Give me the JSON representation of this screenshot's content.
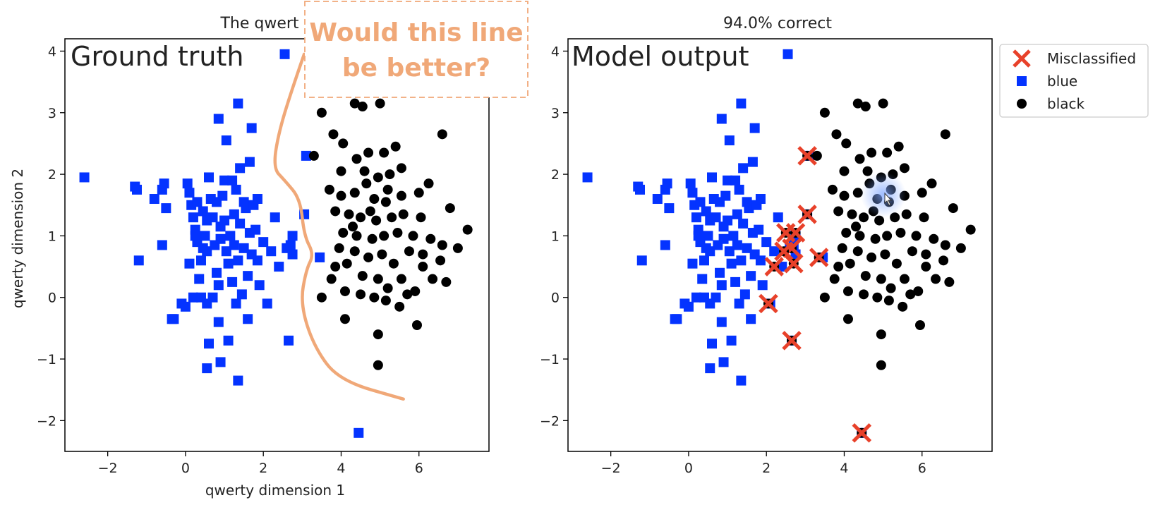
{
  "colors": {
    "blue": "#0433ff",
    "black": "#000000",
    "misclassified": "#e8412a",
    "annotation": "#f0a878",
    "axis": "#000000"
  },
  "chart_data": [
    {
      "type": "scatter",
      "title": "The qwert",
      "panel_label": "Ground truth",
      "xlabel": "qwerty dimension 1",
      "ylabel": "qwerty dimension 2",
      "xlim": [
        -3.1,
        7.8
      ],
      "ylim": [
        -2.5,
        4.2
      ],
      "xticks": [
        -2,
        0,
        2,
        4,
        6
      ],
      "yticks": [
        -2,
        -1,
        0,
        1,
        2,
        3,
        4
      ],
      "series": [
        {
          "name": "blue",
          "marker": "square",
          "points": [
            [
              -2.6,
              1.95
            ],
            [
              -1.3,
              1.8
            ],
            [
              -1.25,
              1.75
            ],
            [
              -1.2,
              0.6
            ],
            [
              -0.8,
              1.6
            ],
            [
              -0.6,
              1.75
            ],
            [
              -0.55,
              1.85
            ],
            [
              -0.5,
              1.45
            ],
            [
              -0.6,
              0.85
            ],
            [
              -0.35,
              -0.35
            ],
            [
              -0.3,
              -0.35
            ],
            [
              -0.1,
              -0.1
            ],
            [
              0.0,
              -0.15
            ],
            [
              0.05,
              1.85
            ],
            [
              0.1,
              1.7
            ],
            [
              0.15,
              1.5
            ],
            [
              0.2,
              1.3
            ],
            [
              0.25,
              1.1
            ],
            [
              0.3,
              1.55
            ],
            [
              0.35,
              0.3
            ],
            [
              0.4,
              0.0
            ],
            [
              0.45,
              1.4
            ],
            [
              0.5,
              1.0
            ],
            [
              0.55,
              0.75
            ],
            [
              0.6,
              1.95
            ],
            [
              0.65,
              1.6
            ],
            [
              0.7,
              1.3
            ],
            [
              0.75,
              0.85
            ],
            [
              0.8,
              0.4
            ],
            [
              0.85,
              0.2
            ],
            [
              0.9,
              1.15
            ],
            [
              0.95,
              1.65
            ],
            [
              1.0,
              1.9
            ],
            [
              1.05,
              0.75
            ],
            [
              1.1,
              0.55
            ],
            [
              1.15,
              1.0
            ],
            [
              1.2,
              0.25
            ],
            [
              1.25,
              1.35
            ],
            [
              1.3,
              1.75
            ],
            [
              1.35,
              0.6
            ],
            [
              1.4,
              1.2
            ],
            [
              1.45,
              0.05
            ],
            [
              1.5,
              0.8
            ],
            [
              1.55,
              1.45
            ],
            [
              1.6,
              0.35
            ],
            [
              1.65,
              1.05
            ],
            [
              1.7,
              0.7
            ],
            [
              1.75,
              1.5
            ],
            [
              1.8,
              1.1
            ],
            [
              1.85,
              0.6
            ],
            [
              1.9,
              0.2
            ],
            [
              2.0,
              0.9
            ],
            [
              2.1,
              -0.1
            ],
            [
              2.2,
              0.75
            ],
            [
              2.3,
              1.3
            ],
            [
              2.4,
              0.5
            ],
            [
              2.6,
              0.8
            ],
            [
              2.7,
              0.85
            ],
            [
              2.75,
              1.0
            ],
            [
              2.75,
              0.7
            ],
            [
              0.85,
              2.9
            ],
            [
              1.05,
              2.55
            ],
            [
              1.35,
              3.15
            ],
            [
              1.7,
              2.75
            ],
            [
              1.65,
              2.2
            ],
            [
              1.4,
              2.1
            ],
            [
              1.2,
              1.9
            ],
            [
              0.8,
              1.55
            ],
            [
              0.55,
              1.25
            ],
            [
              0.3,
              0.9
            ],
            [
              0.1,
              0.55
            ],
            [
              0.2,
              0.0
            ],
            [
              0.55,
              -0.1
            ],
            [
              0.6,
              -0.75
            ],
            [
              0.55,
              -1.15
            ],
            [
              0.9,
              -1.05
            ],
            [
              1.1,
              -0.7
            ],
            [
              1.35,
              -1.35
            ],
            [
              0.85,
              -0.4
            ],
            [
              1.3,
              -0.1
            ],
            [
              2.65,
              -0.7
            ],
            [
              3.1,
              2.3
            ],
            [
              3.05,
              1.35
            ],
            [
              3.45,
              0.65
            ],
            [
              2.55,
              3.95
            ],
            [
              4.45,
              -2.2
            ],
            [
              0.25,
              1.0
            ],
            [
              1.0,
              1.25
            ],
            [
              1.5,
              1.55
            ],
            [
              0.4,
              0.6
            ],
            [
              1.85,
              1.6
            ],
            [
              1.25,
              0.85
            ],
            [
              0.7,
              0.0
            ],
            [
              1.6,
              -0.35
            ],
            [
              0.45,
              0.8
            ],
            [
              0.9,
              0.95
            ]
          ]
        },
        {
          "name": "black",
          "marker": "circle",
          "points": [
            [
              3.5,
              3.0
            ],
            [
              3.8,
              2.65
            ],
            [
              4.05,
              2.5
            ],
            [
              4.35,
              3.15
            ],
            [
              4.55,
              3.1
            ],
            [
              5.0,
              3.15
            ],
            [
              6.6,
              2.65
            ],
            [
              5.4,
              2.45
            ],
            [
              5.1,
              2.35
            ],
            [
              4.7,
              2.35
            ],
            [
              4.4,
              2.25
            ],
            [
              3.3,
              2.3
            ],
            [
              4.0,
              2.05
            ],
            [
              4.6,
              2.05
            ],
            [
              5.25,
              2.0
            ],
            [
              5.55,
              2.1
            ],
            [
              4.95,
              1.95
            ],
            [
              4.65,
              1.85
            ],
            [
              4.35,
              1.7
            ],
            [
              4.0,
              1.65
            ],
            [
              3.7,
              1.75
            ],
            [
              4.85,
              1.6
            ],
            [
              5.2,
              1.75
            ],
            [
              5.55,
              1.65
            ],
            [
              6.0,
              1.7
            ],
            [
              6.25,
              1.85
            ],
            [
              3.85,
              1.4
            ],
            [
              4.2,
              1.35
            ],
            [
              4.5,
              1.3
            ],
            [
              4.9,
              1.25
            ],
            [
              5.3,
              1.3
            ],
            [
              5.6,
              1.35
            ],
            [
              6.05,
              1.3
            ],
            [
              6.8,
              1.45
            ],
            [
              7.25,
              1.1
            ],
            [
              4.05,
              1.05
            ],
            [
              4.4,
              1.0
            ],
            [
              4.8,
              0.95
            ],
            [
              5.1,
              1.0
            ],
            [
              5.45,
              1.05
            ],
            [
              5.85,
              1.0
            ],
            [
              6.3,
              0.95
            ],
            [
              6.6,
              0.85
            ],
            [
              7.0,
              0.8
            ],
            [
              3.95,
              0.8
            ],
            [
              4.35,
              0.75
            ],
            [
              4.7,
              0.65
            ],
            [
              5.05,
              0.7
            ],
            [
              5.35,
              0.55
            ],
            [
              5.75,
              0.75
            ],
            [
              6.1,
              0.7
            ],
            [
              6.55,
              0.6
            ],
            [
              3.85,
              0.5
            ],
            [
              4.15,
              0.55
            ],
            [
              4.55,
              0.35
            ],
            [
              4.95,
              0.3
            ],
            [
              5.2,
              0.15
            ],
            [
              5.55,
              0.3
            ],
            [
              5.9,
              0.1
            ],
            [
              6.35,
              0.3
            ],
            [
              3.75,
              0.3
            ],
            [
              4.1,
              0.1
            ],
            [
              4.5,
              0.05
            ],
            [
              4.85,
              0.0
            ],
            [
              5.15,
              -0.05
            ],
            [
              5.5,
              -0.15
            ],
            [
              5.7,
              0.05
            ],
            [
              3.5,
              0.0
            ],
            [
              4.1,
              -0.35
            ],
            [
              4.95,
              -0.6
            ],
            [
              5.95,
              -0.45
            ],
            [
              4.95,
              -1.1
            ],
            [
              6.1,
              0.5
            ],
            [
              6.7,
              0.25
            ],
            [
              4.3,
              1.15
            ],
            [
              4.75,
              1.4
            ],
            [
              5.15,
              1.55
            ]
          ]
        }
      ],
      "annotation": {
        "text_line1": "Would this line",
        "text_line2": "be better?",
        "curve": [
          [
            3.05,
            3.95
          ],
          [
            2.8,
            3.5
          ],
          [
            2.4,
            2.7
          ],
          [
            2.25,
            2.1
          ],
          [
            2.55,
            1.9
          ],
          [
            2.95,
            1.6
          ],
          [
            3.05,
            1.0
          ],
          [
            3.3,
            0.7
          ],
          [
            3.1,
            0.45
          ],
          [
            2.95,
            -0.1
          ],
          [
            3.3,
            -0.8
          ],
          [
            3.95,
            -1.35
          ],
          [
            5.6,
            -1.65
          ]
        ]
      }
    },
    {
      "type": "scatter",
      "title": "94.0% correct",
      "panel_label": "Model output",
      "xlabel": "",
      "ylabel": "",
      "xlim": [
        -3.1,
        7.8
      ],
      "ylim": [
        -2.5,
        4.2
      ],
      "xticks": [
        -2,
        0,
        2,
        4,
        6
      ],
      "yticks": [
        -2,
        -1,
        0,
        1,
        2,
        3,
        4
      ],
      "misclassified": [
        [
          3.05,
          2.3
        ],
        [
          2.5,
          1.05
        ],
        [
          2.75,
          1.05
        ],
        [
          2.65,
          0.8
        ],
        [
          2.45,
          0.75
        ],
        [
          2.7,
          0.55
        ],
        [
          2.2,
          0.5
        ],
        [
          3.35,
          0.65
        ],
        [
          2.05,
          -0.1
        ],
        [
          2.65,
          -0.7
        ],
        [
          4.45,
          -2.2
        ],
        [
          3.05,
          1.35
        ]
      ],
      "legend": {
        "position": "outside-right-top",
        "entries": [
          {
            "label": "Misclassified",
            "marker": "x"
          },
          {
            "label": "blue",
            "marker": "square"
          },
          {
            "label": "black",
            "marker": "circle"
          }
        ]
      }
    }
  ]
}
